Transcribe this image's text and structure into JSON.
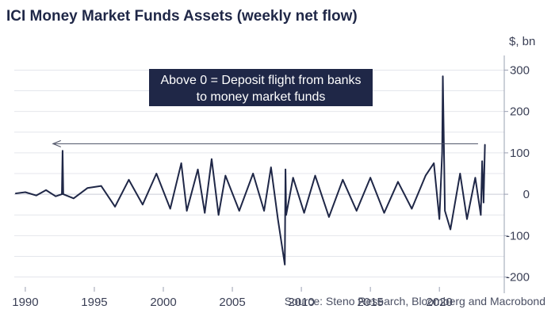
{
  "chart_data": {
    "type": "line",
    "title": "ICI Money Market Funds Assets (weekly net flow)",
    "y_unit_label": "$, bn",
    "ylim": [
      -220,
      320
    ],
    "xlim": [
      1989.2,
      2024.7
    ],
    "y_ticks": [
      300,
      200,
      100,
      0,
      -100,
      -200
    ],
    "y_tick_labels": [
      "300",
      "200",
      "100",
      "0",
      "-100",
      "-200"
    ],
    "x_ticks": [
      1990,
      1995,
      2000,
      2005,
      2010,
      2015,
      2020
    ],
    "x_tick_labels": [
      "1990",
      "1995",
      "2000",
      "2005",
      "2010",
      "2015",
      "2020"
    ],
    "grid": true,
    "annotation": {
      "lines": [
        "Above 0 = Deposit flight from banks",
        "to money market funds"
      ],
      "arrow_y_value": 122,
      "arrow_from_x": 2022.8,
      "arrow_to_x": 1992.0
    },
    "source": "Source: Steno Research, Bloomberg and Macrobond",
    "series": [
      {
        "color": "#1f2747",
        "x": [
          1989.3,
          1990.0,
          1990.8,
          1991.5,
          1992.2,
          1992.65,
          1992.7,
          1992.75,
          1993.5,
          1994.5,
          1995.5,
          1996.5,
          1997.5,
          1998.5,
          1999.5,
          2000.5,
          2001.3,
          2001.7,
          2002.5,
          2003.0,
          2003.5,
          2004.0,
          2004.5,
          2005.5,
          2006.5,
          2007.3,
          2007.8,
          2008.3,
          2008.8,
          2008.85,
          2008.9,
          2009.4,
          2010.2,
          2011.0,
          2012.0,
          2013.0,
          2014.0,
          2015.0,
          2016.0,
          2017.0,
          2018.0,
          2019.0,
          2019.6,
          2020.0,
          2020.2,
          2020.25,
          2020.4,
          2020.8,
          2021.5,
          2022.0,
          2022.6,
          2023.0,
          2023.1,
          2023.2,
          2023.3
        ],
        "values": [
          2,
          5,
          -3,
          10,
          -5,
          0,
          105,
          0,
          -10,
          15,
          20,
          -30,
          35,
          -25,
          50,
          -35,
          75,
          -40,
          60,
          -45,
          85,
          -50,
          45,
          -40,
          50,
          -40,
          65,
          -60,
          -170,
          60,
          -50,
          40,
          -45,
          45,
          -55,
          35,
          -40,
          40,
          -45,
          30,
          -35,
          45,
          75,
          -60,
          100,
          285,
          -40,
          -85,
          50,
          -60,
          40,
          -50,
          80,
          -20,
          120
        ]
      }
    ]
  }
}
